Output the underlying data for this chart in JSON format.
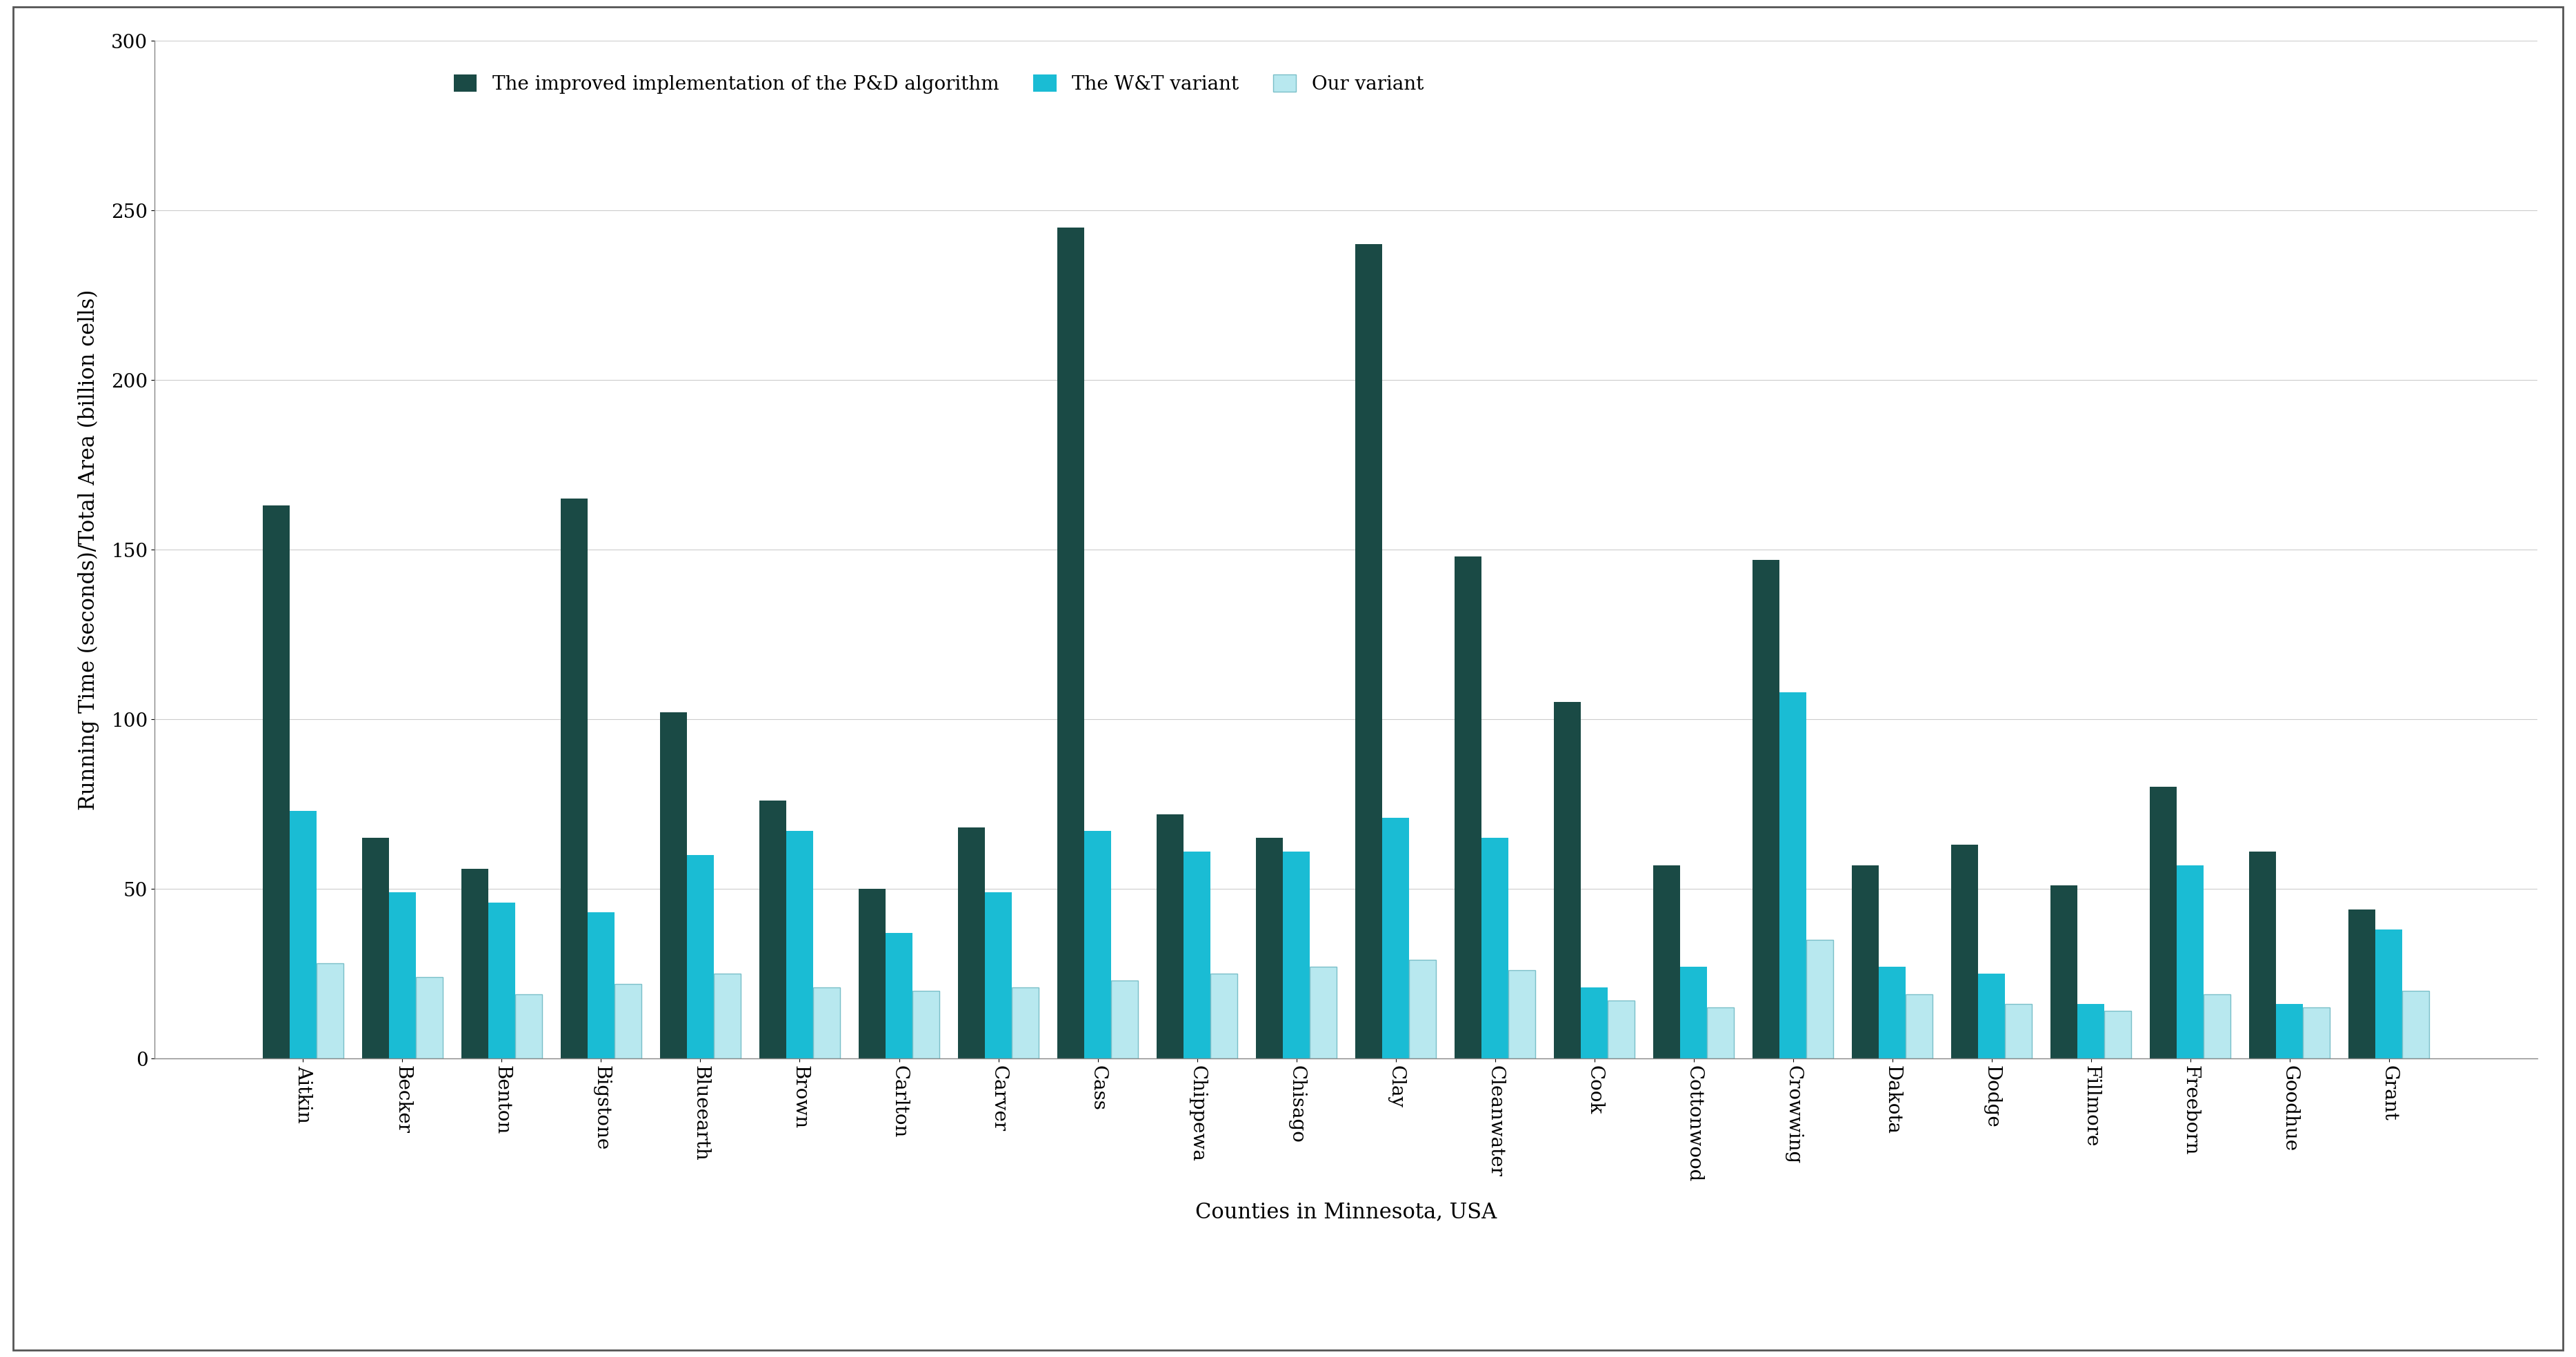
{
  "categories": [
    "Aitkin",
    "Becker",
    "Benton",
    "Bigstone",
    "Blueearth",
    "Brown",
    "Carlton",
    "Carver",
    "Cass",
    "Chippewa",
    "Chisago",
    "Clay",
    "Cleanwater",
    "Cook",
    "Cottonwood",
    "Crowwing",
    "Dakota",
    "Dodge",
    "Fillmore",
    "Freeborn",
    "Goodhue",
    "Grant"
  ],
  "series1": [
    163,
    65,
    56,
    165,
    102,
    76,
    50,
    68,
    245,
    72,
    65,
    240,
    148,
    105,
    57,
    147,
    57,
    63,
    51,
    80,
    61,
    44
  ],
  "series2": [
    73,
    49,
    46,
    43,
    60,
    67,
    37,
    49,
    67,
    61,
    61,
    71,
    65,
    21,
    27,
    108,
    27,
    25,
    16,
    57,
    16,
    38
  ],
  "series3": [
    28,
    24,
    19,
    22,
    25,
    21,
    20,
    21,
    23,
    25,
    27,
    29,
    26,
    17,
    15,
    35,
    19,
    16,
    14,
    19,
    15,
    20
  ],
  "color1": "#1a4a45",
  "color2": "#1abcd4",
  "color3": "#b8e8ef",
  "color3_edge": "#7abfc8",
  "legend1": "The improved implementation of the P&D algorithm",
  "legend2": "The W&T variant",
  "legend3": "Our variant",
  "ylabel": "Running Time (seconds)/Total Area (billion cells)",
  "xlabel": "Counties in Minnesota, USA",
  "ylim": [
    0,
    300
  ],
  "yticks": [
    0,
    50,
    100,
    150,
    200,
    250,
    300
  ],
  "axis_fontsize": 22,
  "tick_fontsize": 20,
  "legend_fontsize": 20,
  "xlabel_fontsize": 22,
  "bar_width": 0.27,
  "background_color": "#ffffff",
  "grid_color": "#cccccc",
  "spine_color": "#888888"
}
